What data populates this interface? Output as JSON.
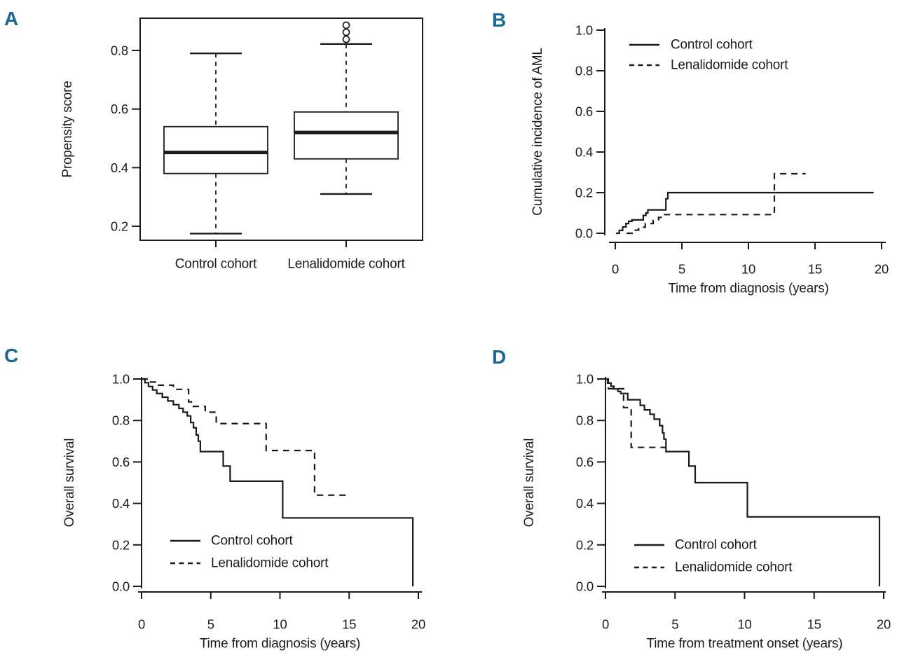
{
  "page": {
    "background": "#ffffff",
    "text_color": "#1b1b1b",
    "accent_color": "#176994",
    "line_color": "#1b1b1b"
  },
  "chart_data": [
    {
      "panel_label": "A",
      "type": "boxplot",
      "ylabel": "Propensity score",
      "ytick_labels": [
        "0.2",
        "0.4",
        "0.6",
        "0.8"
      ],
      "ytick_values": [
        0.2,
        0.4,
        0.6,
        0.8
      ],
      "ylim": [
        0.15,
        0.91
      ],
      "categories": [
        "Control cohort",
        "Lenalidomide cohort"
      ],
      "boxes": [
        {
          "category": "Control cohort",
          "whisker_low": 0.175,
          "q1": 0.38,
          "median": 0.452,
          "q3": 0.54,
          "whisker_high": 0.79,
          "outliers": []
        },
        {
          "category": "Lenalidomide cohort",
          "whisker_low": 0.31,
          "q1": 0.43,
          "median": 0.52,
          "q3": 0.59,
          "whisker_high": 0.822,
          "outliers": [
            0.838,
            0.862,
            0.886
          ]
        }
      ]
    },
    {
      "panel_label": "B",
      "type": "km",
      "ylabel": "Cumulative incidence of AML",
      "xlabel": "Time from diagnosis (years)",
      "ytick_labels": [
        "0.0",
        "0.2",
        "0.4",
        "0.6",
        "0.8",
        "1.0"
      ],
      "ytick_values": [
        0,
        0.2,
        0.4,
        0.6,
        0.8,
        1.0
      ],
      "xtick_labels": [
        "0",
        "5",
        "10",
        "15",
        "20"
      ],
      "xtick_values": [
        0,
        5,
        10,
        15,
        20
      ],
      "xlim": [
        0,
        20
      ],
      "ylim": [
        0,
        1
      ],
      "legend_position": "top-left",
      "series": [
        {
          "name": "Control cohort",
          "style": "solid",
          "drop_to_zero": false,
          "t": [
            0.05,
            0.3,
            0.55,
            0.8,
            1.0,
            1.25,
            2.1,
            2.3,
            2.45,
            3.8,
            3.95,
            19.4
          ],
          "v": [
            0,
            0.014,
            0.031,
            0.048,
            0.059,
            0.066,
            0.088,
            0.1,
            0.115,
            0.17,
            0.2,
            0.2
          ]
        },
        {
          "name": "Lenalidomide cohort",
          "style": "dashed",
          "drop_to_zero": false,
          "t": [
            0.85,
            1.4,
            1.75,
            2.25,
            2.85,
            3.25,
            3.6,
            11.95,
            14.3
          ],
          "v": [
            0,
            0.015,
            0.03,
            0.048,
            0.063,
            0.078,
            0.092,
            0.293,
            0.293
          ]
        }
      ]
    },
    {
      "panel_label": "C",
      "type": "km",
      "ylabel": "Overall survival",
      "xlabel": "Time from diagnosis (years)",
      "ytick_labels": [
        "0.0",
        "0.2",
        "0.4",
        "0.6",
        "0.8",
        "1.0"
      ],
      "ytick_values": [
        0,
        0.2,
        0.4,
        0.6,
        0.8,
        1.0
      ],
      "xtick_labels": [
        "0",
        "5",
        "10",
        "15",
        "20"
      ],
      "xtick_values": [
        0,
        5,
        10,
        15,
        20
      ],
      "xlim": [
        0,
        20
      ],
      "ylim": [
        0,
        1
      ],
      "legend_position": "bottom-left",
      "series": [
        {
          "name": "Control cohort",
          "style": "solid",
          "drop_to_zero": true,
          "t": [
            0,
            0.25,
            0.5,
            0.8,
            1.1,
            1.5,
            1.9,
            2.3,
            2.7,
            3.0,
            3.3,
            3.55,
            3.75,
            3.95,
            4.1,
            4.25,
            5.9,
            6.4,
            10.2,
            19.6
          ],
          "v": [
            1.0,
            0.982,
            0.964,
            0.947,
            0.93,
            0.912,
            0.894,
            0.876,
            0.858,
            0.84,
            0.822,
            0.79,
            0.765,
            0.73,
            0.7,
            0.65,
            0.58,
            0.507,
            0.33,
            0.33
          ]
        },
        {
          "name": "Lenalidomide cohort",
          "style": "dashed",
          "drop_to_zero": false,
          "t": [
            0,
            0.65,
            1.0,
            2.3,
            3.4,
            3.6,
            4.6,
            5.4,
            9.0,
            12.5,
            14.9
          ],
          "v": [
            1.0,
            0.985,
            0.97,
            0.95,
            0.89,
            0.868,
            0.84,
            0.785,
            0.655,
            0.44,
            0.44
          ]
        }
      ]
    },
    {
      "panel_label": "D",
      "type": "km",
      "ylabel": "Overall survival",
      "xlabel": "Time from treatment onset (years)",
      "ytick_labels": [
        "0.0",
        "0.2",
        "0.4",
        "0.6",
        "0.8",
        "1.0"
      ],
      "ytick_values": [
        0,
        0.2,
        0.4,
        0.6,
        0.8,
        1.0
      ],
      "xtick_labels": [
        "0",
        "5",
        "10",
        "15",
        "20"
      ],
      "xtick_values": [
        0,
        5,
        10,
        15,
        20
      ],
      "xlim": [
        0,
        20
      ],
      "ylim": [
        0,
        1
      ],
      "legend_position": "bottom-left",
      "series": [
        {
          "name": "Control cohort",
          "style": "solid",
          "drop_to_zero": true,
          "t": [
            0,
            0.15,
            0.4,
            0.6,
            0.9,
            1.1,
            1.6,
            2.5,
            2.8,
            3.2,
            3.5,
            3.9,
            4.1,
            4.2,
            4.35,
            6.0,
            6.45,
            10.2,
            19.7
          ],
          "v": [
            1.0,
            0.98,
            0.965,
            0.952,
            0.94,
            0.93,
            0.9,
            0.873,
            0.851,
            0.83,
            0.806,
            0.775,
            0.74,
            0.71,
            0.65,
            0.58,
            0.5,
            0.335,
            0.335
          ]
        },
        {
          "name": "Lenalidomide cohort",
          "style": "dashed",
          "drop_to_zero": false,
          "t": [
            0,
            0.2,
            1.3,
            1.85,
            4.35
          ],
          "v": [
            1.0,
            0.953,
            0.862,
            0.67,
            0.67
          ]
        }
      ]
    }
  ]
}
